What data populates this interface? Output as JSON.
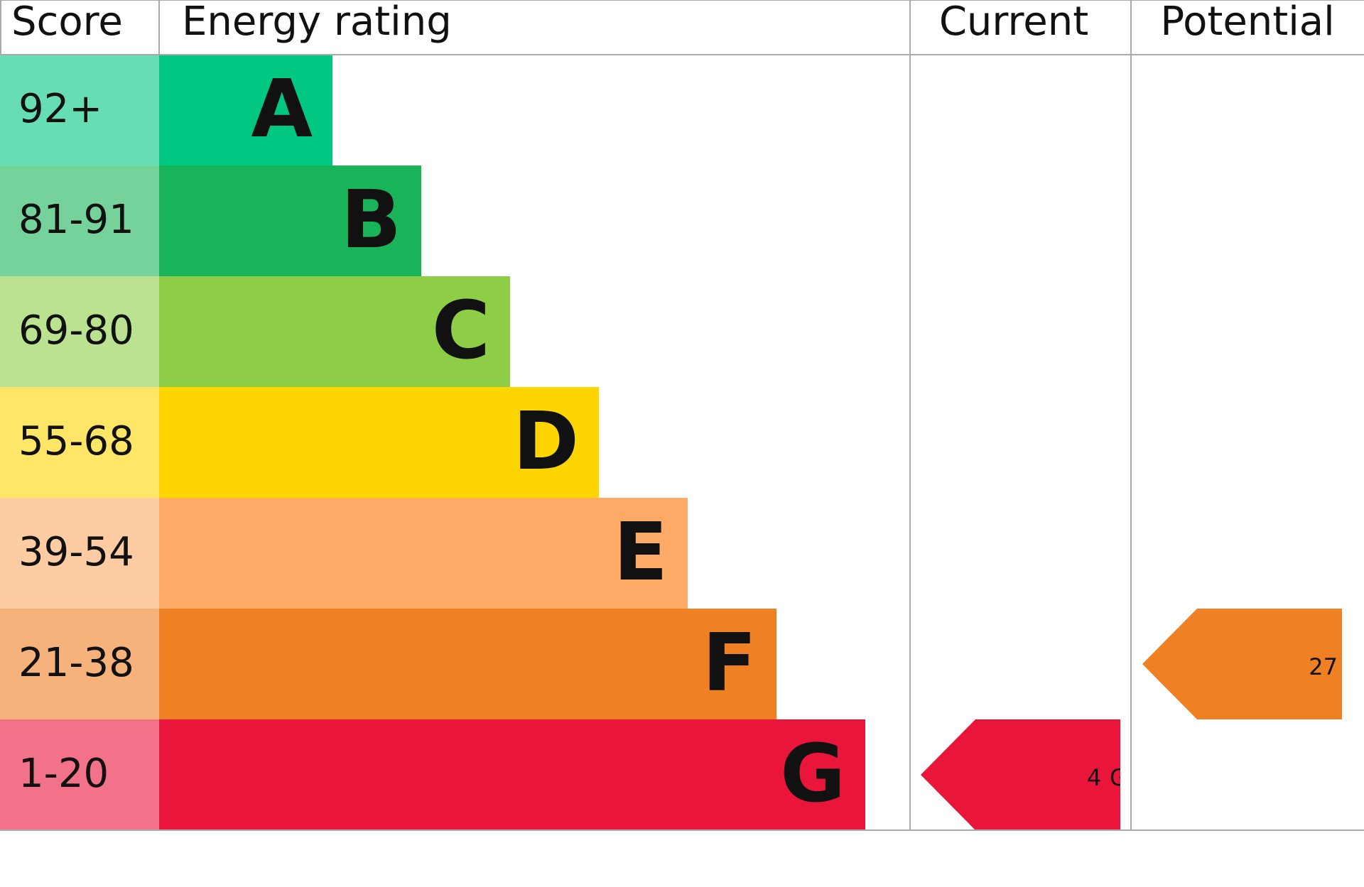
{
  "header": {
    "score": "Score",
    "rating": "Energy rating",
    "current": "Current",
    "potential": "Potential"
  },
  "bands": [
    {
      "range": "92+",
      "letter": "A",
      "color": "#00c781"
    },
    {
      "range": "81-91",
      "letter": "B",
      "color": "#19b459"
    },
    {
      "range": "69-80",
      "letter": "C",
      "color": "#8dce46"
    },
    {
      "range": "55-68",
      "letter": "D",
      "color": "#ffd500"
    },
    {
      "range": "39-54",
      "letter": "E",
      "color": "#fcaa65"
    },
    {
      "range": "21-38",
      "letter": "F",
      "color": "#ef8023"
    },
    {
      "range": "1-20",
      "letter": "G",
      "color": "#e9153b"
    }
  ],
  "current": {
    "score": 4,
    "rating": "G"
  },
  "potential": {
    "score": 27
  }
}
